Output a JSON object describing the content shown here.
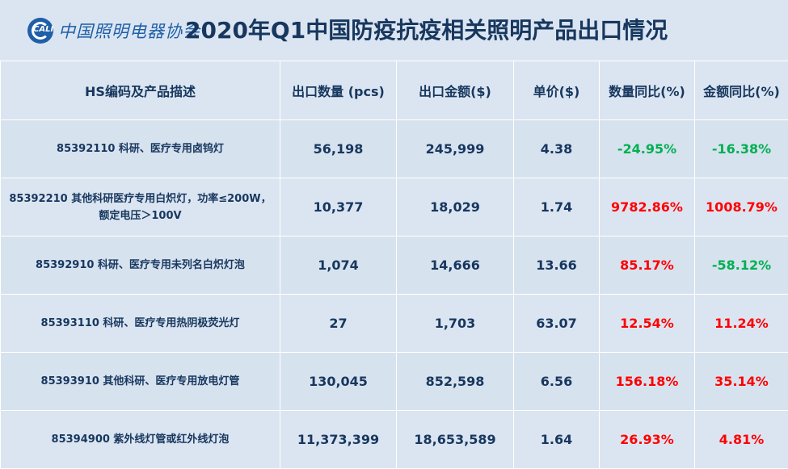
{
  "header": {
    "logo_text": "中国照明电器协会",
    "logo_badge": "CALI",
    "title": "2020年Q1中国防疫抗疫相关照明产品出口情况"
  },
  "colors": {
    "positive": "#ff0000",
    "negative": "#00b050",
    "text": "#17375e"
  },
  "chart_data": {
    "type": "table",
    "title": "2020年Q1中国防疫抗疫相关照明产品出口情况",
    "columns": [
      "HS编码及产品描述",
      "出口数量 (pcs)",
      "出口金额($)",
      "单价($)",
      "数量同比(%)",
      "金额同比(%)"
    ],
    "rows": [
      [
        "85392110 科研、医疗专用卤钨灯",
        "56,198",
        "245,999",
        "4.38",
        "-24.95%",
        "-16.38%"
      ],
      [
        "85392210 其他科研医疗专用白炽灯，功率≤200W，额定电压＞100V",
        "10,377",
        "18,029",
        "1.74",
        "9782.86%",
        "1008.79%"
      ],
      [
        "85392910 科研、医疗专用未列名白炽灯泡",
        "1,074",
        "14,666",
        "13.66",
        "85.17%",
        "-58.12%"
      ],
      [
        "85393110 科研、医疗专用热阴极荧光灯",
        "27",
        "1,703",
        "63.07",
        "12.54%",
        "11.24%"
      ],
      [
        "85393910 其他科研、医疗专用放电灯管",
        "130,045",
        "852,598",
        "6.56",
        "156.18%",
        "35.14%"
      ],
      [
        "85394900 紫外线灯管或红外线灯泡",
        "11,373,399",
        "18,653,589",
        "1.64",
        "26.93%",
        "4.81%"
      ]
    ]
  }
}
